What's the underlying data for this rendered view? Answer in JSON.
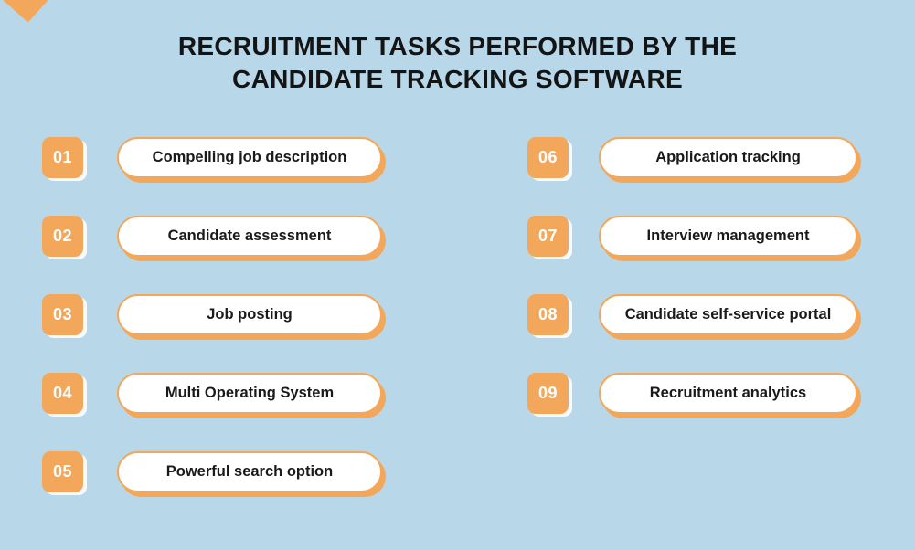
{
  "title": {
    "line1": "RECRUITMENT TASKS PERFORMED BY THE",
    "line2": "CANDIDATE TRACKING SOFTWARE"
  },
  "columns": {
    "left": [
      {
        "num": "01",
        "label": "Compelling job description"
      },
      {
        "num": "02",
        "label": "Candidate assessment"
      },
      {
        "num": "03",
        "label": "Job posting"
      },
      {
        "num": "04",
        "label": "Multi Operating System"
      },
      {
        "num": "05",
        "label": "Powerful search option"
      }
    ],
    "right": [
      {
        "num": "06",
        "label": "Application tracking"
      },
      {
        "num": "07",
        "label": "Interview management"
      },
      {
        "num": "08",
        "label": "Candidate self-service portal"
      },
      {
        "num": "09",
        "label": "Recruitment analytics"
      }
    ]
  },
  "colors": {
    "background": "#B8D8EA",
    "accent": "#F3A75A",
    "text": "#141414",
    "pill_fill": "#FFFFFF",
    "badge_text": "#FFFFFF"
  },
  "decoration": {
    "corner_shape": "orange-diamond"
  }
}
